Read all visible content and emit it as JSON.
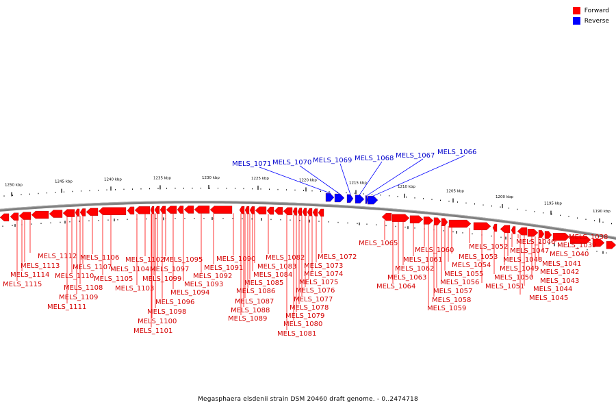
{
  "title": "Megasphaera elsdenii strain DSM 20460 draft genome. - 0..2474718",
  "legend": [
    {
      "label": "Forward",
      "color": "#ff0000"
    },
    {
      "label": "Reverse",
      "color": "#0000ff"
    }
  ],
  "colors": {
    "forward": "#ff0000",
    "reverse": "#0000ff",
    "backbone": "#808080",
    "tick": "#000000"
  },
  "scale_ticks": [
    "1250 kbp",
    "1245 kbp",
    "1240 kbp",
    "1235 kbp",
    "1230 kbp",
    "1225 kbp",
    "1220 kbp",
    "1215 kbp",
    "1210 kbp",
    "1205 kbp",
    "1200 kbp",
    "1195 kbp",
    "1190 kbp"
  ],
  "reverse_genes": [
    "MELS_1071",
    "MELS_1070",
    "MELS_1069",
    "MELS_1068",
    "MELS_1067",
    "MELS_1066"
  ],
  "forward_genes": [
    "MELS_1115",
    "MELS_1114",
    "MELS_1113",
    "MELS_1112",
    "MELS_1111",
    "MELS_1110",
    "MELS_1109",
    "MELS_1108",
    "MELS_1107",
    "MELS_1106",
    "MELS_1105",
    "MELS_1104",
    "MELS_1103",
    "MELS_1102",
    "MELS_1101",
    "MELS_1100",
    "MELS_1099",
    "MELS_1098",
    "MELS_1097",
    "MELS_1096",
    "MELS_1095",
    "MELS_1094",
    "MELS_1093",
    "MELS_1092",
    "MELS_1091",
    "MELS_1090",
    "MELS_1089",
    "MELS_1088",
    "MELS_1087",
    "MELS_1086",
    "MELS_1085",
    "MELS_1084",
    "MELS_1083",
    "MELS_1082",
    "MELS_1081",
    "MELS_1080",
    "MELS_1079",
    "MELS_1078",
    "MELS_1077",
    "MELS_1076",
    "MELS_1075",
    "MELS_1074",
    "MELS_1073",
    "MELS_1072",
    "MELS_1065",
    "MELS_1064",
    "MELS_1063",
    "MELS_1062",
    "MELS_1061",
    "MELS_1060",
    "MELS_1059",
    "MELS_1058",
    "MELS_1057",
    "MELS_1056",
    "MELS_1055",
    "MELS_1054",
    "MELS_1053",
    "MELS_1052",
    "MELS_1051",
    "MELS_1050",
    "MELS_1049",
    "MELS_1048",
    "MELS_1047",
    "MELS_1046",
    "MELS_1045",
    "MELS_1044",
    "MELS_1043",
    "MELS_1042",
    "MELS_1041",
    "MELS_1040",
    "MELS_1039",
    "MELS_1038"
  ]
}
